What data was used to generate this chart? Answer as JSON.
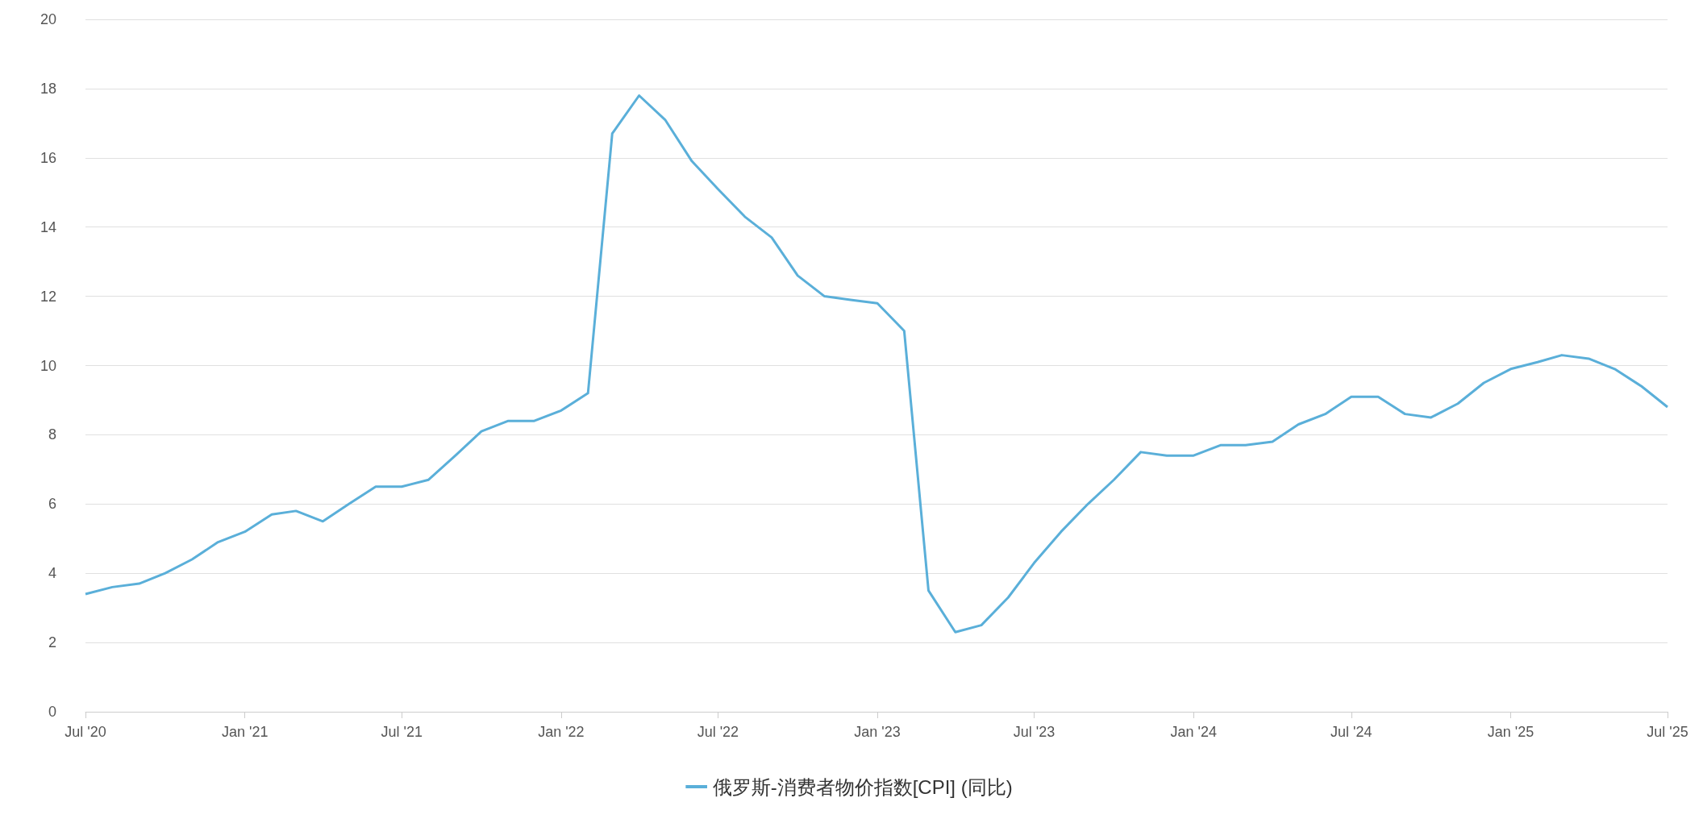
{
  "chart_data": {
    "type": "line",
    "legend": "bottom",
    "grid": "y",
    "marker": "none",
    "line_style": "solid",
    "x": [
      "2020-07",
      "2020-08",
      "2020-09",
      "2020-10",
      "2020-11",
      "2020-12",
      "2021-01",
      "2021-02",
      "2021-03",
      "2021-04",
      "2021-05",
      "2021-06",
      "2021-07",
      "2021-08",
      "2021-09",
      "2021-10",
      "2021-11",
      "2021-12",
      "2022-01",
      "2022-02",
      "2022-03",
      "2022-04",
      "2022-05",
      "2022-06",
      "2022-07",
      "2022-08",
      "2022-09",
      "2022-10",
      "2022-11",
      "2022-12",
      "2023-01",
      "2023-02",
      "2023-03",
      "2023-04",
      "2023-05",
      "2023-06",
      "2023-07",
      "2023-08",
      "2023-09",
      "2023-10",
      "2023-11",
      "2023-12",
      "2024-01",
      "2024-02",
      "2024-03",
      "2024-04",
      "2024-05",
      "2024-06",
      "2024-07",
      "2024-08",
      "2024-09",
      "2024-10",
      "2024-11",
      "2024-12",
      "2025-01",
      "2025-02",
      "2025-03",
      "2025-04",
      "2025-05",
      "2025-06",
      "2025-07"
    ],
    "series": [
      {
        "name": "俄罗斯-消费者物价指数[CPI] (同比)",
        "color": "#5aafd9",
        "values": [
          3.4,
          3.6,
          3.7,
          4.0,
          4.4,
          4.9,
          5.2,
          5.7,
          5.8,
          5.5,
          6.0,
          6.5,
          6.5,
          6.7,
          7.4,
          8.1,
          8.4,
          8.4,
          8.7,
          9.2,
          16.7,
          17.8,
          17.1,
          15.9,
          15.1,
          14.3,
          13.7,
          12.6,
          12.0,
          11.9,
          11.8,
          11.0,
          3.5,
          2.3,
          2.5,
          3.3,
          4.3,
          5.2,
          6.0,
          6.7,
          7.5,
          7.4,
          7.4,
          7.7,
          7.7,
          7.8,
          8.3,
          8.6,
          9.1,
          9.1,
          8.6,
          8.5,
          8.9,
          9.5,
          9.9,
          10.1,
          10.3,
          10.2,
          9.9,
          9.4,
          8.8
        ]
      }
    ],
    "xlim": [
      "2020-07",
      "2025-07"
    ],
    "xticks": [
      {
        "value": "2020-07",
        "label": "Jul '20"
      },
      {
        "value": "2021-01",
        "label": "Jan '21"
      },
      {
        "value": "2021-07",
        "label": "Jul '21"
      },
      {
        "value": "2022-01",
        "label": "Jan '22"
      },
      {
        "value": "2022-07",
        "label": "Jul '22"
      },
      {
        "value": "2023-01",
        "label": "Jan '23"
      },
      {
        "value": "2023-07",
        "label": "Jul '23"
      },
      {
        "value": "2024-01",
        "label": "Jan '24"
      },
      {
        "value": "2024-07",
        "label": "Jul '24"
      },
      {
        "value": "2025-01",
        "label": "Jan '25"
      },
      {
        "value": "2025-07",
        "label": "Jul '25"
      }
    ],
    "ylim": [
      0,
      20
    ],
    "yticks": [
      0,
      2,
      4,
      6,
      8,
      10,
      12,
      14,
      16,
      18,
      20
    ]
  }
}
